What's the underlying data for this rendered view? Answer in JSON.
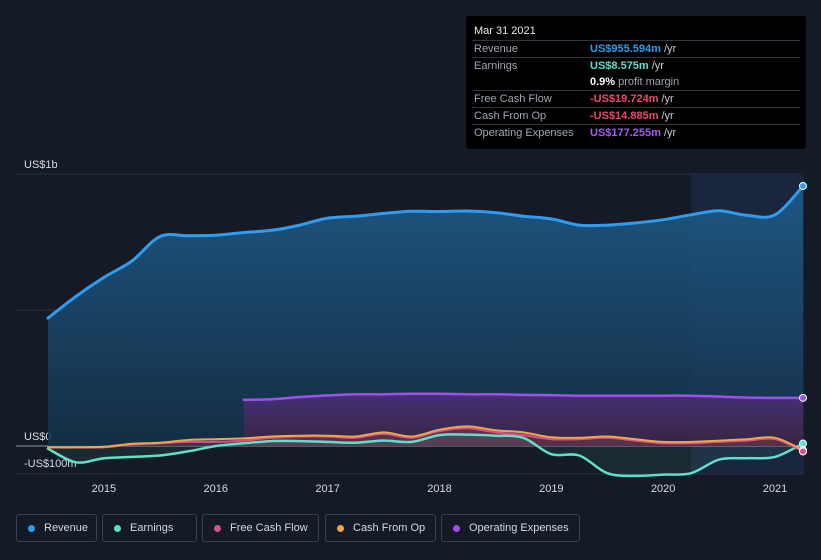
{
  "tooltip": {
    "date": "Mar 31 2021",
    "rows": [
      {
        "label": "Revenue",
        "value": "US$955.594m",
        "unit": "/yr",
        "color": "#2e9cf0"
      },
      {
        "label": "Earnings",
        "value": "US$8.575m",
        "unit": "/yr",
        "color": "#5fe0c8"
      },
      {
        "label": "",
        "value": "0.9%",
        "unit": "profit margin",
        "color": "#ffffff"
      },
      {
        "label": "Free Cash Flow",
        "value": "-US$19.724m",
        "unit": "/yr",
        "color": "#ef4a6a"
      },
      {
        "label": "Cash From Op",
        "value": "-US$14.885m",
        "unit": "/yr",
        "color": "#ef4a6a"
      },
      {
        "label": "Operating Expenses",
        "value": "US$177.255m",
        "unit": "/yr",
        "color": "#a45cf0"
      }
    ]
  },
  "legend": [
    {
      "label": "Revenue",
      "color": "#2e9cf0"
    },
    {
      "label": "Earnings",
      "color": "#5fe0c8"
    },
    {
      "label": "Free Cash Flow",
      "color": "#d8508a"
    },
    {
      "label": "Cash From Op",
      "color": "#eda848"
    },
    {
      "label": "Operating Expenses",
      "color": "#9e50ea"
    }
  ],
  "chart_data": {
    "type": "area",
    "y_tick_labels": [
      {
        "label": "US$1b",
        "value": 1000
      },
      {
        "label": "US$0",
        "value": 0
      },
      {
        "label": "-US$100m",
        "value": -100
      }
    ],
    "ylim": [
      -100,
      1000
    ],
    "xlim": [
      2014.5,
      2021.25
    ],
    "x_ticks": [
      "2015",
      "2016",
      "2017",
      "2018",
      "2019",
      "2020",
      "2021"
    ],
    "highlight_start": 2020.25,
    "grid": true,
    "legend_position": "bottom",
    "series": [
      {
        "name": "Revenue",
        "color": "#2e9cf0",
        "x": [
          2014.5,
          2014.75,
          2015.0,
          2015.25,
          2015.5,
          2015.75,
          2016.0,
          2016.25,
          2016.5,
          2016.75,
          2017.0,
          2017.25,
          2017.5,
          2017.75,
          2018.0,
          2018.25,
          2018.5,
          2018.75,
          2019.0,
          2019.25,
          2019.5,
          2019.75,
          2020.0,
          2020.25,
          2020.5,
          2020.75,
          2021.0,
          2021.25
        ],
        "y": [
          470,
          550,
          620,
          680,
          770,
          773,
          775,
          785,
          793,
          812,
          838,
          845,
          855,
          863,
          862,
          864,
          858,
          845,
          835,
          812,
          812,
          820,
          832,
          850,
          865,
          848,
          850,
          956
        ]
      },
      {
        "name": "Earnings",
        "x": [
          2014.5,
          2014.75,
          2015.0,
          2015.25,
          2015.5,
          2015.75,
          2016.0,
          2016.25,
          2016.5,
          2016.75,
          2017.0,
          2017.25,
          2017.5,
          2017.75,
          2018.0,
          2018.25,
          2018.5,
          2018.75,
          2019.0,
          2019.25,
          2019.5,
          2019.75,
          2020.0,
          2020.25,
          2020.5,
          2020.75,
          2021.0,
          2021.25
        ],
        "y": [
          -10,
          -60,
          -45,
          -40,
          -35,
          -20,
          0,
          10,
          18,
          18,
          15,
          12,
          20,
          15,
          40,
          42,
          38,
          30,
          -30,
          -35,
          -100,
          -110,
          -105,
          -100,
          -50,
          -45,
          -40,
          9
        ]
      },
      {
        "name": "Free Cash Flow",
        "x": [
          2014.5,
          2014.75,
          2015.0,
          2015.25,
          2015.5,
          2015.75,
          2016.0,
          2016.25,
          2016.5,
          2016.75,
          2017.0,
          2017.25,
          2017.5,
          2017.75,
          2018.0,
          2018.25,
          2018.5,
          2018.75,
          2019.0,
          2019.25,
          2019.5,
          2019.75,
          2020.0,
          2020.25,
          2020.5,
          2020.75,
          2021.0,
          2021.25
        ],
        "y": [
          -5,
          -5,
          -5,
          5,
          10,
          15,
          15,
          20,
          30,
          35,
          35,
          30,
          45,
          30,
          55,
          65,
          50,
          40,
          25,
          25,
          30,
          20,
          10,
          10,
          15,
          20,
          25,
          -20
        ]
      },
      {
        "name": "Cash From Op",
        "x": [
          2014.5,
          2014.75,
          2015.0,
          2015.25,
          2015.5,
          2015.75,
          2016.0,
          2016.25,
          2016.5,
          2016.75,
          2017.0,
          2017.25,
          2017.5,
          2017.75,
          2018.0,
          2018.25,
          2018.5,
          2018.75,
          2019.0,
          2019.25,
          2019.5,
          2019.75,
          2020.0,
          2020.25,
          2020.5,
          2020.75,
          2021.0,
          2021.25
        ],
        "y": [
          -5,
          -5,
          -3,
          8,
          12,
          22,
          25,
          28,
          35,
          38,
          38,
          35,
          50,
          35,
          60,
          72,
          58,
          50,
          32,
          30,
          35,
          25,
          15,
          15,
          20,
          25,
          30,
          -15
        ]
      },
      {
        "name": "Operating Expenses",
        "x": [
          2016.25,
          2016.5,
          2016.75,
          2017.0,
          2017.25,
          2017.5,
          2017.75,
          2018.0,
          2018.25,
          2018.5,
          2018.75,
          2019.0,
          2019.25,
          2019.5,
          2019.75,
          2020.0,
          2020.25,
          2020.5,
          2020.75,
          2021.0,
          2021.25
        ],
        "y": [
          170,
          172,
          180,
          186,
          190,
          190,
          192,
          192,
          190,
          190,
          188,
          187,
          185,
          185,
          185,
          185,
          185,
          182,
          178,
          177,
          177
        ]
      }
    ]
  }
}
